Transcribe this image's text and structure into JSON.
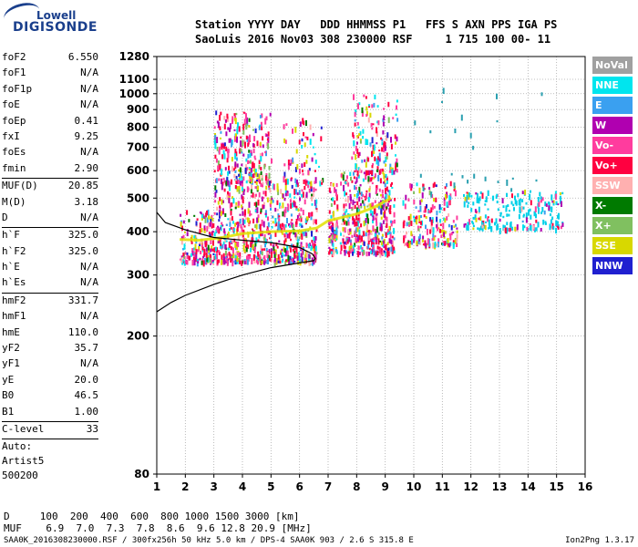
{
  "logo": {
    "line1": "Lowell",
    "line2": "DIGISONDE"
  },
  "header": {
    "line1": "Station YYYY DAY   DDD HHMMSS P1   FFS S AXN PPS IGA PS",
    "line2": "SaoLuis 2016 Nov03 308 230000 RSF     1 715 100 00- 11"
  },
  "params_group1": [
    {
      "name": "foF2",
      "value": "6.550"
    },
    {
      "name": "foF1",
      "value": "N/A"
    },
    {
      "name": "foF1p",
      "value": "N/A"
    },
    {
      "name": "foE",
      "value": "N/A"
    },
    {
      "name": "foEp",
      "value": "0.41"
    },
    {
      "name": "fxI",
      "value": "9.25"
    },
    {
      "name": "foEs",
      "value": "N/A"
    },
    {
      "name": "fmin",
      "value": "2.90"
    }
  ],
  "params_group2": [
    {
      "name": "MUF(D)",
      "value": "20.85"
    },
    {
      "name": "M(D)",
      "value": "3.18"
    },
    {
      "name": "D",
      "value": "N/A"
    }
  ],
  "params_group3": [
    {
      "name": "h`F",
      "value": "325.0"
    },
    {
      "name": "h`F2",
      "value": "325.0"
    },
    {
      "name": "h`E",
      "value": "N/A"
    },
    {
      "name": "h`Es",
      "value": "N/A"
    }
  ],
  "params_group4": [
    {
      "name": "hmF2",
      "value": "331.7"
    },
    {
      "name": "hmF1",
      "value": "N/A"
    },
    {
      "name": "hmE",
      "value": "110.0"
    },
    {
      "name": "yF2",
      "value": "35.7"
    },
    {
      "name": "yF1",
      "value": "N/A"
    },
    {
      "name": "yE",
      "value": "20.0"
    },
    {
      "name": "B0",
      "value": "46.5"
    },
    {
      "name": "B1",
      "value": "1.00"
    }
  ],
  "params_group5": [
    {
      "name": "C-level",
      "value": "33"
    }
  ],
  "auto": {
    "line1": "Auto:",
    "line2": "Artist5",
    "line3": "500200"
  },
  "legend": [
    {
      "label": "NoVal",
      "color": "#a0a0a0"
    },
    {
      "label": "NNE",
      "color": "#00e5ee"
    },
    {
      "label": "E",
      "color": "#3aa0f0"
    },
    {
      "label": "W",
      "color": "#b000b0"
    },
    {
      "label": "Vo-",
      "color": "#ff3c9e"
    },
    {
      "label": "Vo+",
      "color": "#ff0040"
    },
    {
      "label": "SSW",
      "color": "#ffb0b0"
    },
    {
      "label": "X-",
      "color": "#007a00"
    },
    {
      "label": "X+",
      "color": "#80c060"
    },
    {
      "label": "SSE",
      "color": "#d8d800"
    },
    {
      "label": "NNW",
      "color": "#2020d0"
    }
  ],
  "bottom": {
    "line1": "D     100  200  400  600  800 1000 1500 3000 [km]",
    "line2": "MUF    6.9  7.0  7.3  7.8  8.6  9.6 12.8 20.9 [MHz]",
    "footer": "SAA0K_2016308230000.RSF / 300fx256h 50 kHz 5.0 km / DPS-4 SAA0K 903 / 2.6 S 315.8 E",
    "version": "Ion2Png 1.3.17"
  },
  "chart_data": {
    "type": "scatter",
    "xlim": [
      1,
      16
    ],
    "ylim": [
      80,
      1280
    ],
    "x_ticks": [
      1,
      2,
      3,
      4,
      5,
      6,
      7,
      8,
      9,
      10,
      11,
      12,
      13,
      14,
      15,
      16
    ],
    "y_ticks": [
      80,
      200,
      300,
      400,
      500,
      600,
      700,
      800,
      900,
      1000,
      1100,
      1280
    ],
    "x_tick_labels": [
      "1",
      "2",
      "3",
      "4",
      "5",
      "6",
      "7",
      "8",
      "9",
      "10",
      "11",
      "12",
      "13",
      "14",
      "15",
      "16"
    ],
    "y_tick_labels": [
      "80",
      "200",
      "300",
      "400",
      "500",
      "600",
      "700",
      "800",
      "900",
      "1000",
      "1100",
      "1280"
    ],
    "grid": true,
    "y_scale": "log",
    "profile_curve": [
      [
        1.0,
        235
      ],
      [
        1.5,
        250
      ],
      [
        2.0,
        262
      ],
      [
        3.0,
        282
      ],
      [
        4.0,
        300
      ],
      [
        5.0,
        315
      ],
      [
        6.0,
        325
      ],
      [
        6.5,
        330
      ],
      [
        6.55,
        335
      ],
      [
        6.45,
        345
      ],
      [
        6.0,
        360
      ],
      [
        5.0,
        372
      ],
      [
        4.0,
        378
      ],
      [
        3.0,
        385
      ],
      [
        2.0,
        405
      ],
      [
        1.3,
        425
      ],
      [
        1.0,
        455
      ]
    ],
    "echo_clusters": [
      {
        "x": [
          1.8,
          3.0
        ],
        "y": [
          330,
          470
        ],
        "density": 160
      },
      {
        "x": [
          3.0,
          6.6
        ],
        "y": [
          330,
          560
        ],
        "density": 700
      },
      {
        "x": [
          3.0,
          5.0
        ],
        "y": [
          560,
          900
        ],
        "density": 260
      },
      {
        "x": [
          5.4,
          6.8
        ],
        "y": [
          560,
          860
        ],
        "density": 70
      },
      {
        "x": [
          7.0,
          7.3
        ],
        "y": [
          350,
          560
        ],
        "density": 80
      },
      {
        "x": [
          7.4,
          9.3
        ],
        "y": [
          350,
          600
        ],
        "density": 420
      },
      {
        "x": [
          7.8,
          9.4
        ],
        "y": [
          600,
          1000
        ],
        "density": 150
      },
      {
        "x": [
          9.6,
          11.5
        ],
        "y": [
          370,
          560
        ],
        "density": 200
      },
      {
        "x": [
          11.7,
          15.2
        ],
        "y": [
          410,
          530
        ],
        "density": 220
      },
      {
        "x": [
          10.0,
          14.5
        ],
        "y": [
          520,
          1100
        ],
        "density": 25
      }
    ],
    "trace_curve": [
      [
        1.8,
        380
      ],
      [
        2.5,
        378
      ],
      [
        3.3,
        385
      ],
      [
        4.0,
        395
      ],
      [
        5.0,
        400
      ],
      [
        6.0,
        402
      ],
      [
        6.6,
        410
      ],
      [
        7.0,
        430
      ],
      [
        8.0,
        450
      ],
      [
        8.6,
        470
      ],
      [
        9.2,
        500
      ]
    ]
  }
}
